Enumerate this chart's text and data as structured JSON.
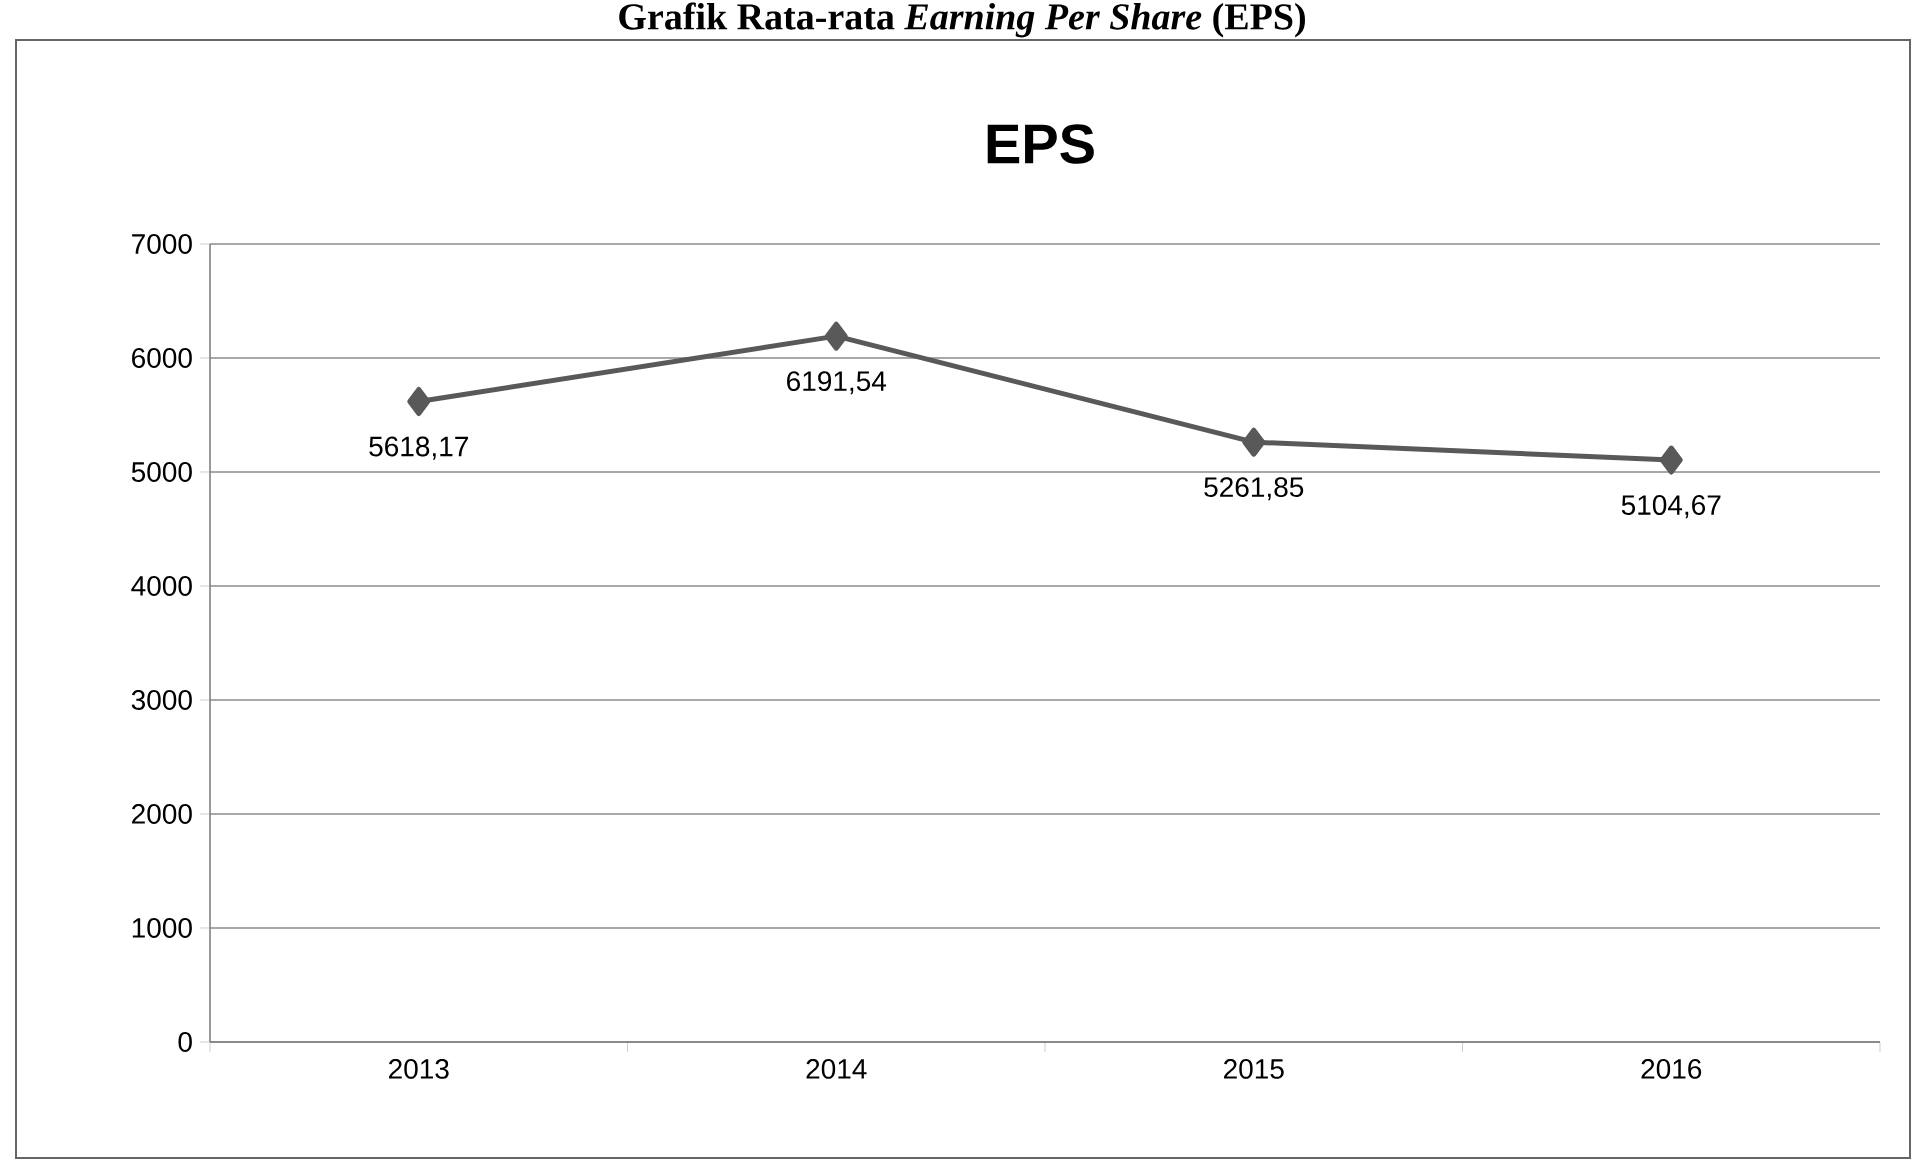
{
  "chart_data": {
    "type": "line",
    "title": "EPS",
    "annotations": [
      "Grafik Rata-rata *Earning Per Share* (EPS)"
    ],
    "categories": [
      "2013",
      "2014",
      "2015",
      "2016"
    ],
    "series": [
      {
        "color": "#595959",
        "values": [
          5618.17,
          6191.54,
          5261.85,
          5104.67
        ],
        "value_labels": [
          "5618,17",
          "6191,54",
          "5261,85",
          "5104,67"
        ]
      }
    ],
    "ylim": [
      0,
      7000
    ],
    "yticks": [
      0,
      1000,
      2000,
      3000,
      4000,
      5000,
      6000,
      7000
    ],
    "grid": "y",
    "marker": "diamond",
    "line_style": "solid"
  }
}
